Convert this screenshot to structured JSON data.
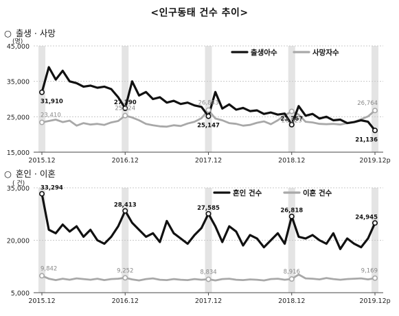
{
  "title": "<인구동태 건수 추이>",
  "chart_data": [
    {
      "type": "line",
      "section_label": "출생 · 사망",
      "bullet": "○",
      "unit": "(명)",
      "ylim": [
        15000,
        45000
      ],
      "yticks": [
        15000,
        25000,
        35000,
        45000
      ],
      "ytick_labels": [
        "15,000",
        "25,000",
        "35,000",
        "45,000"
      ],
      "xtick_labels": [
        "2015.12",
        "2016.12",
        "2017.12",
        "2018.12",
        "2019.12p"
      ],
      "legend_position": "top-right",
      "series": [
        {
          "name": "출생아수",
          "color": "#111111",
          "values": [
            31910,
            39000,
            35500,
            38000,
            35000,
            34500,
            33500,
            33800,
            33200,
            33500,
            32800,
            30500,
            27390,
            35000,
            31000,
            32000,
            30000,
            30500,
            29000,
            29500,
            28600,
            29000,
            28200,
            27800,
            25147,
            32000,
            27300,
            28500,
            27000,
            27500,
            26600,
            26800,
            25800,
            26200,
            25600,
            25900,
            22767,
            28000,
            25300,
            25800,
            24500,
            25000,
            24000,
            24200,
            23200,
            23500,
            24000,
            23600,
            21136
          ]
        },
        {
          "name": "사망자수",
          "color": "#a8a8a8",
          "values": [
            23410,
            23800,
            24200,
            23500,
            23900,
            22500,
            23200,
            22800,
            23000,
            22700,
            23400,
            23800,
            25324,
            24800,
            24000,
            23000,
            22600,
            22300,
            22200,
            22600,
            22400,
            23100,
            23600,
            24600,
            26883,
            24500,
            24000,
            23200,
            23000,
            22500,
            22700,
            23300,
            23700,
            22900,
            24000,
            25400,
            26523,
            25600,
            23600,
            23400,
            23000,
            22900,
            23000,
            22800,
            23200,
            23500,
            24300,
            25100,
            26764
          ]
        }
      ],
      "annotations": [
        {
          "series": 0,
          "index": 0,
          "label": "31,910"
        },
        {
          "series": 0,
          "index": 12,
          "label": "27,390"
        },
        {
          "series": 0,
          "index": 24,
          "label": "25,147"
        },
        {
          "series": 0,
          "index": 36,
          "label": "22,767"
        },
        {
          "series": 0,
          "index": 48,
          "label": "21,136"
        },
        {
          "series": 1,
          "index": 0,
          "label": "23,410"
        },
        {
          "series": 1,
          "index": 12,
          "label": "25,324"
        },
        {
          "series": 1,
          "index": 24,
          "label": "26,883"
        },
        {
          "series": 1,
          "index": 36,
          "label": "26,523"
        },
        {
          "series": 1,
          "index": 48,
          "label": "26,764"
        }
      ]
    },
    {
      "type": "line",
      "section_label": "혼인 · 이혼",
      "bullet": "○",
      "unit": "( 건)",
      "ylim": [
        5000,
        35000
      ],
      "yticks": [
        5000,
        20000,
        35000
      ],
      "ytick_labels": [
        "5,000",
        "20,000",
        "35,000"
      ],
      "xtick_labels": [
        "2015.12",
        "2016.12",
        "2017.12",
        "2018.12",
        "2019.12p"
      ],
      "legend_position": "top-right",
      "series": [
        {
          "name": "혼인 건수",
          "color": "#111111",
          "values": [
            33294,
            23000,
            22000,
            24500,
            22500,
            24000,
            21000,
            23000,
            20000,
            19000,
            21000,
            24000,
            28413,
            25000,
            23000,
            21000,
            22000,
            19500,
            25500,
            22000,
            20500,
            19000,
            21500,
            23500,
            27585,
            24000,
            19500,
            24000,
            22500,
            18500,
            21500,
            20500,
            18000,
            20000,
            22000,
            19000,
            26818,
            21000,
            20500,
            21500,
            20000,
            19000,
            22000,
            17500,
            20500,
            19000,
            18000,
            20500,
            24945
          ]
        },
        {
          "name": "이혼 건수",
          "color": "#a8a8a8",
          "values": [
            9842,
            9000,
            8600,
            9000,
            8700,
            9100,
            8900,
            8700,
            9000,
            8600,
            8900,
            9000,
            9252,
            8800,
            8500,
            8900,
            9100,
            8700,
            8600,
            8900,
            8700,
            8600,
            8900,
            8700,
            8834,
            8500,
            8900,
            9000,
            8700,
            8600,
            8800,
            8700,
            8500,
            8900,
            9000,
            8700,
            8916,
            10200,
            9100,
            9000,
            8800,
            9200,
            8900,
            8700,
            8900,
            9000,
            9100,
            8800,
            9169
          ]
        }
      ],
      "annotations": [
        {
          "series": 0,
          "index": 0,
          "label": "33,294"
        },
        {
          "series": 0,
          "index": 12,
          "label": "28,413"
        },
        {
          "series": 0,
          "index": 24,
          "label": "27,585"
        },
        {
          "series": 0,
          "index": 36,
          "label": "26,818"
        },
        {
          "series": 0,
          "index": 48,
          "label": "24,945"
        },
        {
          "series": 1,
          "index": 0,
          "label": "9,842"
        },
        {
          "series": 1,
          "index": 12,
          "label": "9,252"
        },
        {
          "series": 1,
          "index": 24,
          "label": "8,834"
        },
        {
          "series": 1,
          "index": 36,
          "label": "8,916"
        },
        {
          "series": 1,
          "index": 48,
          "label": "9,169"
        }
      ]
    }
  ]
}
